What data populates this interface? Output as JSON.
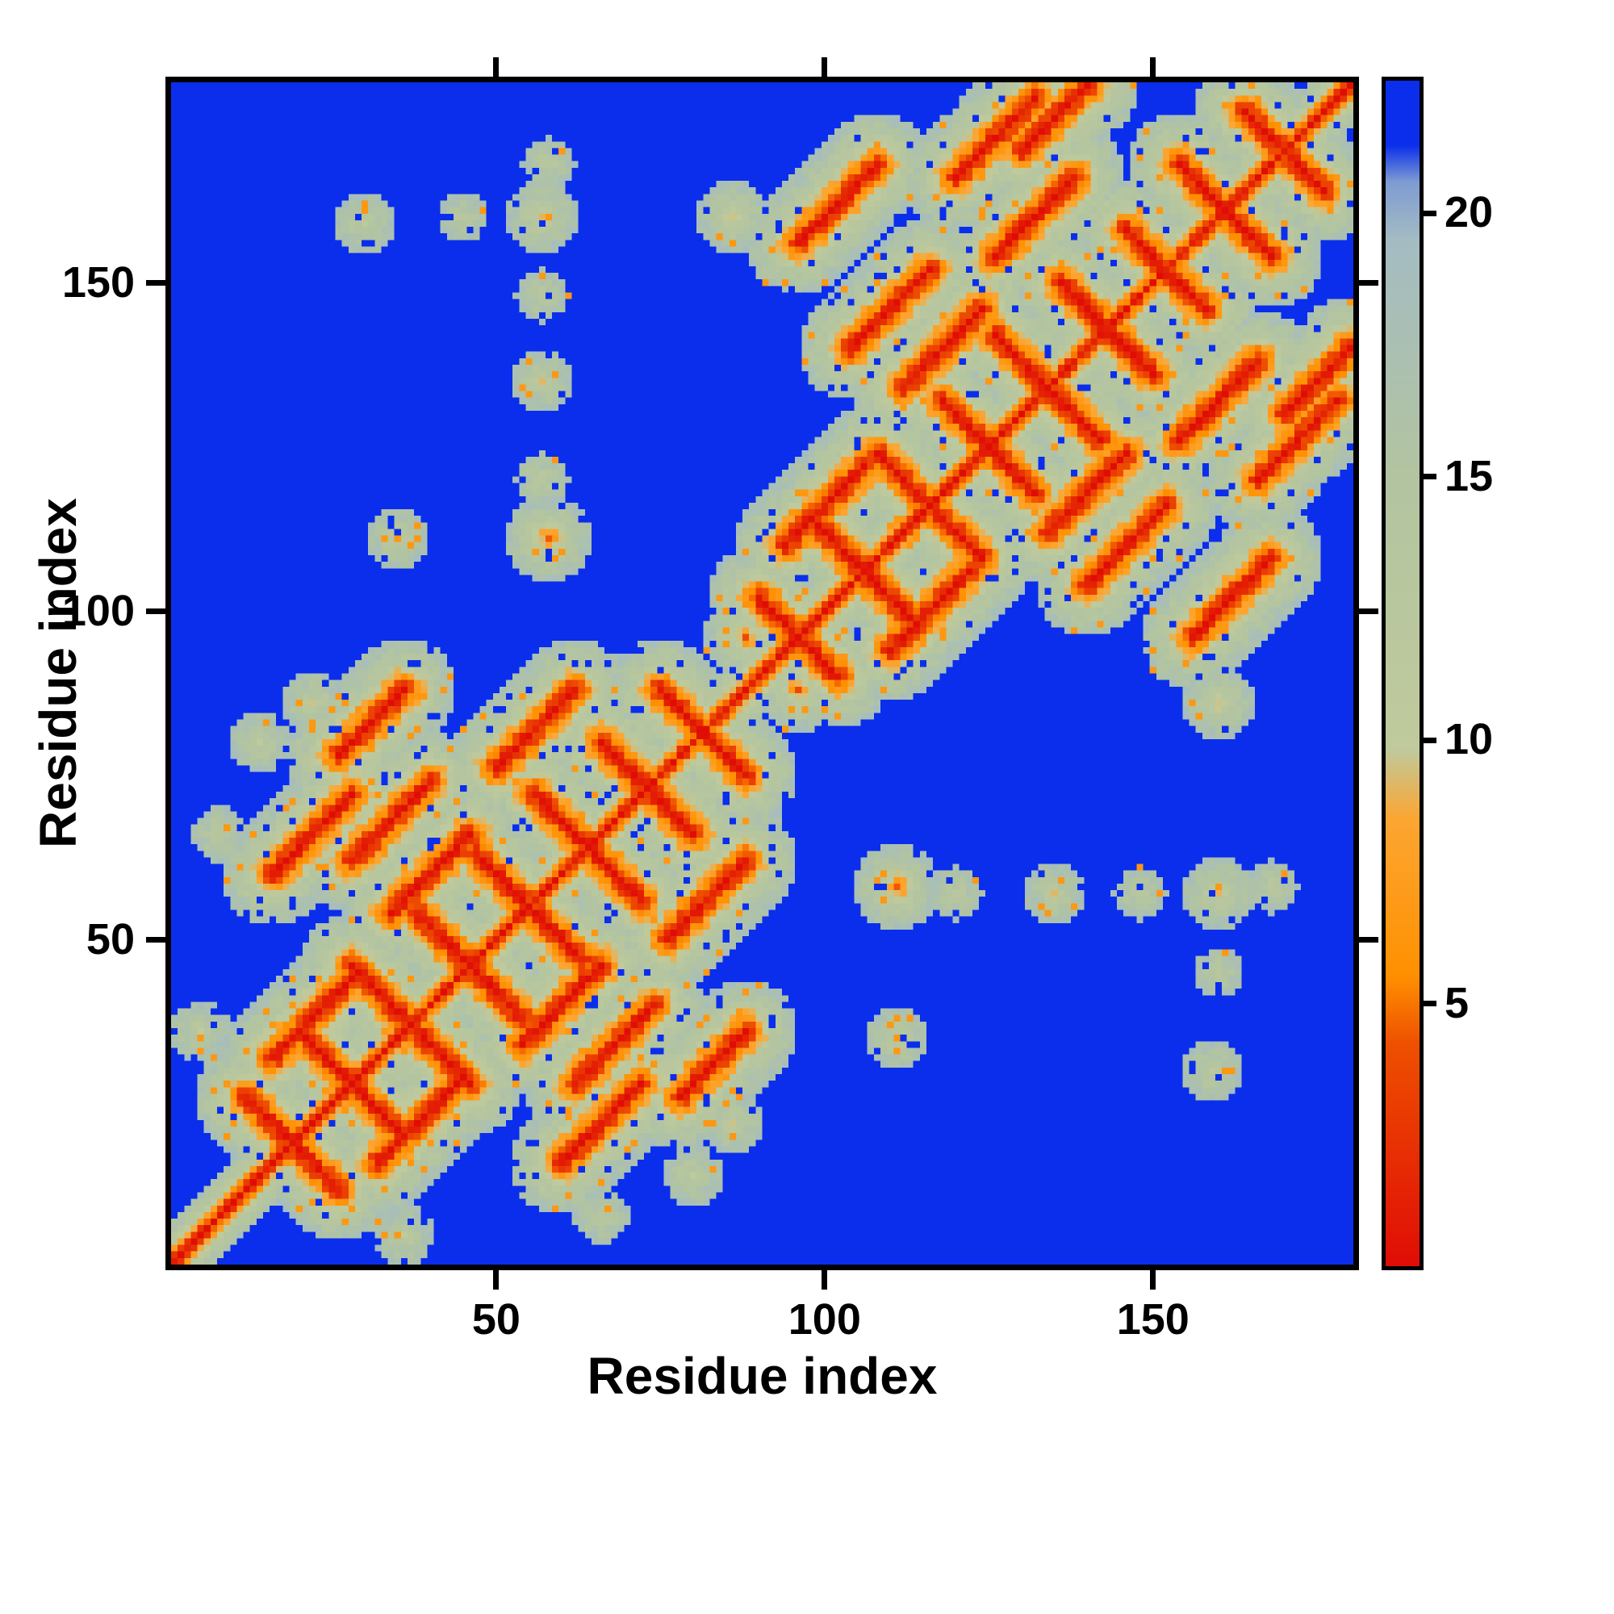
{
  "chart_data": {
    "type": "heatmap",
    "title": "",
    "xlabel": "Residue index",
    "ylabel": "Residue index",
    "x_ticks": [
      50,
      100,
      150
    ],
    "y_ticks": [
      50,
      100,
      150
    ],
    "n_residues": 180,
    "legend": "none",
    "grid": false,
    "description": "Symmetric residue-residue distance map of a two-domain protein (domain 1: residues ~1-88, domain 2: ~88-180). Red diagonal = zero self-distance, orange anti-diagonal streaks = hairpin/secondary-structure contacts, pale green = mid-range distances, blue = beyond colour scale.",
    "colorbar": {
      "ticks": [
        5,
        10,
        15,
        20
      ],
      "vmin": 0,
      "vmax": 22.5
    },
    "colormap_stops": [
      [
        0.0,
        "#e00d06"
      ],
      [
        4.2,
        "#ee5000"
      ],
      [
        5.5,
        "#ff9000"
      ],
      [
        8.5,
        "#fca633"
      ],
      [
        9.8,
        "#c0ca9c"
      ],
      [
        15.0,
        "#b2c4a0"
      ],
      [
        19.5,
        "#a4bcc2"
      ],
      [
        20.6,
        "#7e9cd2"
      ],
      [
        21.3,
        "#0a2eec"
      ],
      [
        22.5,
        "#0a2eec"
      ]
    ],
    "matrix_model": {
      "backbone_scale": 3.8,
      "halo_scale": 3.3,
      "knee": 13,
      "compress": 0.38,
      "far_cut": 26,
      "blue_value": 22.2,
      "noise_amp": 3.2,
      "antidiagonal_segments": [
        {
          "s": 38,
          "i0": 12,
          "i1": 19
        },
        {
          "s": 56,
          "i0": 20,
          "i1": 34
        },
        {
          "s": 74,
          "i0": 28,
          "i1": 45
        },
        {
          "s": 92,
          "i0": 38,
          "i1": 54
        },
        {
          "s": 110,
          "i0": 47,
          "i1": 63
        },
        {
          "s": 128,
          "i0": 56,
          "i1": 72
        },
        {
          "s": 146,
          "i0": 66,
          "i1": 80
        },
        {
          "s": 163,
          "i0": 75,
          "i1": 86
        },
        {
          "s": 192,
          "i0": 90,
          "i1": 100
        },
        {
          "s": 212,
          "i0": 98,
          "i1": 112
        },
        {
          "s": 232,
          "i0": 108,
          "i1": 124
        },
        {
          "s": 250,
          "i0": 118,
          "i1": 132
        },
        {
          "s": 268,
          "i0": 126,
          "i1": 142
        },
        {
          "s": 286,
          "i0": 136,
          "i1": 150
        },
        {
          "s": 304,
          "i0": 146,
          "i1": 158
        },
        {
          "s": 322,
          "i0": 154,
          "i1": 168
        },
        {
          "s": 340,
          "i0": 164,
          "i1": 176
        }
      ],
      "parallel_segments": [
        {
          "o": 16,
          "i0": 16,
          "i1": 28
        },
        {
          "o": 20,
          "i0": 34,
          "i1": 46
        },
        {
          "o": 26,
          "i0": 50,
          "i1": 62
        },
        {
          "o": 34,
          "i0": 28,
          "i1": 40
        },
        {
          "o": 44,
          "i0": 16,
          "i1": 28
        },
        {
          "o": 52,
          "i0": 26,
          "i1": 36
        },
        {
          "o": 16,
          "i0": 94,
          "i1": 106
        },
        {
          "o": 22,
          "i0": 112,
          "i1": 124
        },
        {
          "o": 28,
          "i0": 126,
          "i1": 138
        },
        {
          "o": 36,
          "i0": 104,
          "i1": 116
        },
        {
          "o": 46,
          "i0": 120,
          "i1": 132
        },
        {
          "o": 60,
          "i0": 96,
          "i1": 108
        },
        {
          "o": 40,
          "i0": 130,
          "i1": 140
        }
      ],
      "contact_spots": [
        {
          "x": 58,
          "y": 111,
          "peak": 4.5
        },
        {
          "x": 57,
          "y": 135,
          "peak": 10
        },
        {
          "x": 57,
          "y": 160,
          "peak": 8
        },
        {
          "x": 35,
          "y": 111,
          "peak": 10
        },
        {
          "x": 30,
          "y": 159,
          "peak": 11
        },
        {
          "x": 45,
          "y": 160,
          "peak": 13
        },
        {
          "x": 57,
          "y": 120,
          "peak": 12.5
        },
        {
          "x": 57,
          "y": 148,
          "peak": 12.5
        },
        {
          "x": 58,
          "y": 168,
          "peak": 12.5
        },
        {
          "x": 14,
          "y": 80,
          "peak": 11
        },
        {
          "x": 8,
          "y": 66,
          "peak": 12
        },
        {
          "x": 22,
          "y": 86,
          "peak": 10
        },
        {
          "x": 5,
          "y": 36,
          "peak": 11
        },
        {
          "x": 88,
          "y": 96,
          "peak": 5
        },
        {
          "x": 86,
          "y": 160,
          "peak": 8
        }
      ]
    }
  }
}
